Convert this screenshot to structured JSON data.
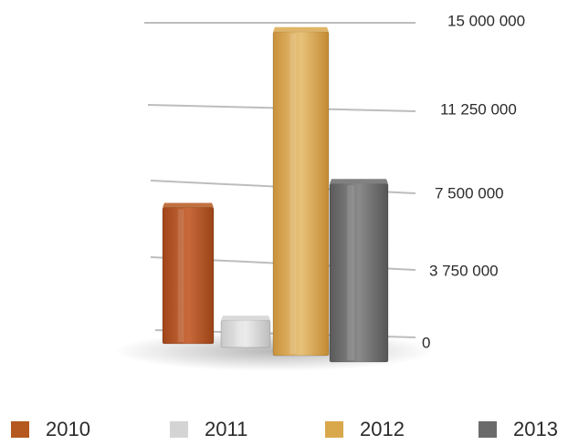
{
  "chart_data": {
    "type": "bar",
    "categories": [
      "2010",
      "2011",
      "2012",
      "2013"
    ],
    "values": [
      6500000,
      1300000,
      14800000,
      8000000
    ],
    "ylim": [
      0,
      15000000
    ],
    "yticks": [
      "0",
      "3 750 000",
      "7 500 000",
      "11 250 000",
      "15 000 000"
    ],
    "grid": true,
    "legend_position": "bottom",
    "legend": [
      {
        "label": "2010",
        "color": "#b5581f"
      },
      {
        "label": "2011",
        "color": "#d4d4d4"
      },
      {
        "label": "2012",
        "color": "#d9a84c"
      },
      {
        "label": "2013",
        "color": "#6b6b6b"
      }
    ],
    "colors": [
      "#b5581f",
      "#d4d4d4",
      "#d9a84c",
      "#6b6b6b"
    ]
  }
}
